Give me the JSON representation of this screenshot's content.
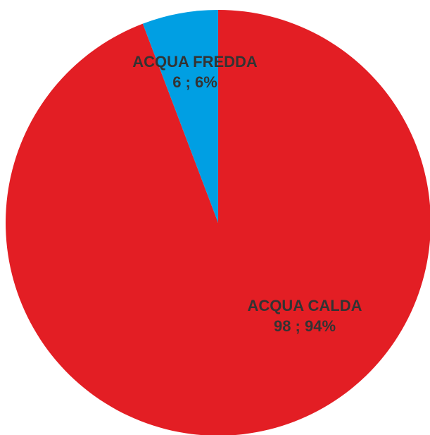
{
  "chart_data": {
    "type": "pie",
    "categories": [
      "ACQUA CALDA",
      "ACQUA FREDDA"
    ],
    "values": [
      98,
      6
    ],
    "percentages": [
      "94%",
      "6%"
    ],
    "data_labels": [
      {
        "name": "ACQUA CALDA",
        "value_text": "98 ; 94%"
      },
      {
        "name": "ACQUA FREDDA",
        "value_text": "6 ; 6%"
      }
    ],
    "colors": [
      "#e31e24",
      "#009fe3"
    ],
    "label_color": "#333333",
    "start": "12 o'clock",
    "direction": "clockwise",
    "legend": "none"
  }
}
